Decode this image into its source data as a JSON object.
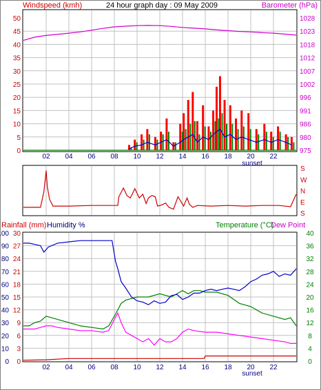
{
  "chart_data": [
    {
      "type": "line",
      "title": "24 hour graph day : 09 May 2009",
      "ylabel_left": "Windspeed (kmh)",
      "ylabel_right": "Barometer (hPa)",
      "x_ticks": [
        "02",
        "04",
        "06",
        "08",
        "10",
        "12",
        "14",
        "16",
        "18",
        "20",
        "22"
      ],
      "x_annotation": "sunset",
      "ylim_left": [
        0,
        50
      ],
      "yticks_left": [
        "0",
        "5",
        "10",
        "15",
        "20",
        "25",
        "30",
        "35",
        "40",
        "45",
        "50"
      ],
      "ylim_right": [
        975,
        1028
      ],
      "yticks_right": [
        "975",
        "980",
        "986",
        "991",
        "996",
        "1002",
        "1007",
        "1012",
        "1018",
        "1023",
        "1028"
      ],
      "grid": true,
      "series": [
        {
          "name": "Barometer (hPa)",
          "color": "#cc00cc",
          "x": [
            0,
            1,
            2,
            3,
            4,
            5,
            6,
            7,
            8,
            9,
            10,
            11,
            12,
            13,
            14,
            15,
            16,
            17,
            18,
            19,
            20,
            21,
            22,
            23,
            24
          ],
          "y": [
            1019,
            1020.3,
            1021,
            1021.4,
            1021.9,
            1022.4,
            1023.1,
            1023.8,
            1024.4,
            1024.7,
            1024.9,
            1025,
            1024.9,
            1024.6,
            1024.2,
            1023.9,
            1023.6,
            1023.2,
            1022.9,
            1022.6,
            1022.4,
            1022.1,
            1021.9,
            1021.5,
            1021.1
          ]
        },
        {
          "name": "Windspeed gust",
          "color": "#ff0000",
          "x": [
            9.3,
            9.8,
            10.4,
            10.9,
            11.6,
            12.1,
            12.6,
            13.2,
            13.8,
            14.1,
            14.5,
            14.9,
            15.3,
            15.8,
            16.3,
            16.7,
            17.0,
            17.3,
            17.7,
            18.2,
            18.7,
            19.2,
            19.8,
            20.5,
            21.2,
            21.8,
            22.4,
            23.1,
            23.6
          ],
          "y": [
            2,
            4,
            6,
            8,
            5,
            7,
            12,
            3,
            10,
            14,
            19,
            22,
            11,
            17,
            9,
            15,
            24,
            28,
            19,
            17,
            12,
            15,
            14,
            8,
            10,
            7,
            9,
            6,
            5
          ]
        },
        {
          "name": "Windspeed average",
          "color": "#008000",
          "x": [
            9.3,
            9.8,
            10.4,
            10.9,
            11.6,
            12.1,
            12.6,
            13.2,
            13.8,
            14.1,
            14.5,
            14.9,
            15.3,
            15.8,
            16.3,
            16.7,
            17.0,
            17.3,
            17.7,
            18.2,
            18.7,
            19.2,
            19.8,
            20.5,
            21.2,
            21.8,
            22.4,
            23.1,
            23.6
          ],
          "y": [
            1,
            3,
            4,
            6,
            4,
            6,
            7,
            3,
            7,
            8,
            10,
            11,
            6,
            9,
            7,
            11,
            12,
            14,
            10,
            10,
            8,
            9,
            8,
            6,
            7,
            5,
            7,
            5,
            3
          ]
        },
        {
          "name": "Windspeed",
          "color": "#0000cc",
          "x": [
            9.3,
            9.8,
            10.4,
            10.9,
            11.6,
            12.1,
            12.6,
            13.2,
            13.8,
            14.1,
            14.5,
            14.9,
            15.3,
            15.8,
            16.3,
            16.7,
            17.0,
            17.3,
            17.7,
            18.2,
            18.7,
            19.2,
            19.8,
            20.5,
            21.2,
            21.8,
            22.4,
            23.1,
            23.6
          ],
          "y": [
            0.5,
            1.5,
            2,
            3,
            2,
            3,
            4,
            1.5,
            3,
            4,
            5,
            6,
            3,
            5,
            4,
            6,
            7,
            8,
            5,
            6,
            4,
            5,
            4,
            3,
            4,
            3,
            4,
            3,
            2
          ]
        }
      ]
    },
    {
      "type": "line",
      "ylabel_right": [
        "S",
        "E",
        "N",
        "W",
        "S"
      ],
      "x_ticks": [],
      "grid": true,
      "series": [
        {
          "name": "Wind direction",
          "color": "#cc0000",
          "x": [
            0,
            1.5,
            1.8,
            2.0,
            2.1,
            2.3,
            2.6,
            4,
            6,
            7.5,
            8.3,
            8.4,
            8.8,
            9.1,
            9.4,
            9.6,
            9.8,
            10.2,
            10.5,
            10.8,
            11.0,
            11.3,
            11.6,
            11.8,
            12.2,
            12.5,
            12.8,
            13.2,
            13.6,
            14.1,
            14.4,
            14.6,
            14.9,
            15.3,
            16.5,
            18,
            19.5,
            21,
            22.5,
            23.5,
            24
          ],
          "y": [
            225,
            225,
            350,
            160,
            30,
            290,
            235,
            235,
            240,
            240,
            240,
            310,
            20,
            320,
            300,
            335,
            15,
            300,
            330,
            255,
            300,
            320,
            310,
            235,
            245,
            260,
            225,
            210,
            310,
            235,
            300,
            250,
            225,
            240,
            235,
            240,
            235,
            240,
            240,
            230,
            330
          ]
        }
      ]
    },
    {
      "type": "line",
      "ylabel_left_1": "Rainfall (mm)",
      "ylabel_left_2": "Humidity %",
      "ylabel_right_1": "Temperature (°C)",
      "ylabel_right_2": "Dew Point",
      "x_ticks": [
        "02",
        "04",
        "06",
        "08",
        "10",
        "12",
        "14",
        "16",
        "18",
        "20",
        "22"
      ],
      "x_annotation": "sunset",
      "ylim_humidity": [
        0,
        100
      ],
      "yticks_humidity": [
        "0",
        "10",
        "20",
        "30",
        "40",
        "50",
        "60",
        "70",
        "80",
        "90",
        "100"
      ],
      "ylim_rain": [
        0,
        30
      ],
      "yticks_rain": [
        "0",
        "3",
        "6",
        "9",
        "12",
        "15",
        "18",
        "21",
        "24",
        "27",
        "30"
      ],
      "ylim_temp": [
        0,
        40
      ],
      "yticks_temp": [
        "0",
        "4",
        "8",
        "12",
        "16",
        "20",
        "24",
        "28",
        "32",
        "36",
        "40"
      ],
      "grid": true,
      "series": [
        {
          "name": "Humidity %",
          "color": "#0000cc",
          "x": [
            0,
            0.5,
            1,
            1.5,
            1.8,
            2.2,
            3,
            4,
            5,
            6,
            7,
            7.8,
            8.1,
            8.3,
            8.6,
            9,
            9.5,
            10,
            10.5,
            11,
            11.5,
            12,
            12.5,
            13,
            13.5,
            14,
            14.5,
            15,
            15.5,
            16,
            16.5,
            17,
            17.5,
            18,
            18.5,
            19,
            19.5,
            20,
            20.5,
            21,
            21.5,
            22,
            22.5,
            23,
            23.5,
            24
          ],
          "y": [
            92,
            92,
            91,
            90,
            85,
            89,
            92,
            93,
            94,
            94,
            94,
            94,
            78,
            72,
            62,
            57,
            50,
            47,
            46,
            44,
            47,
            45,
            46,
            51,
            52,
            48,
            50,
            53,
            53,
            55,
            56,
            55,
            56,
            57,
            56,
            55,
            58,
            62,
            64,
            67,
            68,
            70,
            66,
            68,
            67,
            72
          ]
        },
        {
          "name": "Rainfall (mm)",
          "color": "#cc0000",
          "x": [
            0,
            2,
            4,
            6,
            8,
            10,
            12,
            14,
            15.9,
            16.0,
            18,
            20,
            22,
            24
          ],
          "y": [
            0.2,
            0.3,
            0.6,
            0.6,
            0.6,
            0.6,
            0.6,
            0.6,
            0.6,
            1.2,
            1.2,
            1.2,
            1.2,
            1.2
          ]
        },
        {
          "name": "Temperature (°C)",
          "color": "#008000",
          "x": [
            0,
            0.5,
            1,
            1.5,
            2,
            2.5,
            3,
            4,
            5,
            6,
            7,
            7.5,
            8,
            8.3,
            8.6,
            9,
            10,
            11,
            12,
            13,
            14,
            14.5,
            15,
            15.5,
            16,
            17,
            18,
            19,
            20,
            21,
            22,
            23,
            23.5,
            24
          ],
          "y": [
            11,
            11,
            12,
            12.5,
            14,
            13.5,
            13,
            12,
            11,
            10.5,
            10,
            11,
            14,
            16,
            18,
            19,
            20,
            20,
            21,
            20,
            22,
            21,
            22,
            22,
            21.5,
            21.5,
            20.5,
            18,
            17,
            15,
            14,
            13,
            13.5,
            11
          ]
        },
        {
          "name": "Dew Point",
          "color": "#ff00ff",
          "x": [
            0,
            0.5,
            1,
            1.5,
            2,
            2.5,
            3,
            4,
            5,
            6,
            7,
            7.5,
            8,
            8.3,
            8.6,
            9,
            9.5,
            10,
            10.5,
            11,
            11.5,
            12,
            12.5,
            13,
            13.5,
            14,
            14.5,
            15,
            16,
            17,
            18,
            19,
            20,
            21,
            22,
            23,
            23.5,
            24
          ],
          "y": [
            10,
            10,
            10,
            10.5,
            11,
            11,
            10.5,
            10,
            9.5,
            9.5,
            9,
            9.5,
            13,
            15,
            12,
            9,
            8,
            7,
            6,
            7,
            5,
            7,
            6,
            6,
            7,
            9,
            10,
            9.5,
            9,
            9,
            8.5,
            8,
            7.5,
            7,
            6.5,
            6,
            5.5,
            5.5
          ]
        }
      ]
    }
  ],
  "colors": {
    "windspeed_label": "#cc0000",
    "barometer_label": "#cc00cc",
    "rainfall_label": "#cc0000",
    "humidity_label": "#000080",
    "temperature_label": "#008000",
    "dewpoint_label": "#cc00cc",
    "direction_label": "#cc0000",
    "xtick": "#000080",
    "grid": "#c0c0c0"
  }
}
